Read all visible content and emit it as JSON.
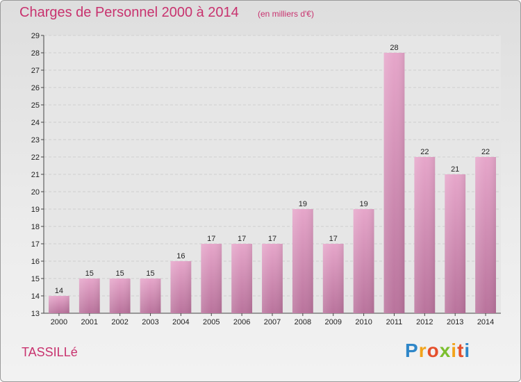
{
  "chart_data": {
    "type": "bar",
    "title": "Charges de Personnel 2000 à 2014",
    "subtitle": "(en milliers d'€)",
    "categories": [
      "2000",
      "2001",
      "2002",
      "2003",
      "2004",
      "2005",
      "2006",
      "2007",
      "2008",
      "2009",
      "2010",
      "2011",
      "2012",
      "2013",
      "2014"
    ],
    "values": [
      14,
      15,
      15,
      15,
      16,
      17,
      17,
      17,
      19,
      17,
      19,
      28,
      22,
      21,
      22
    ],
    "ylim": [
      13,
      29
    ],
    "yticks": [
      "13",
      "14",
      "15",
      "16",
      "17",
      "18",
      "19",
      "20",
      "21",
      "22",
      "23",
      "24",
      "25",
      "26",
      "27",
      "28",
      "29"
    ],
    "grid": true,
    "bar_color": "#d98fb8"
  },
  "commune": "TASSILLé",
  "logo": {
    "letters": [
      "P",
      "r",
      "o",
      "x",
      "i",
      "t",
      "i"
    ],
    "colors": [
      "#2e86c8",
      "#f2a31b",
      "#e54f2b",
      "#7bbf2e",
      "#f2a31b",
      "#e54f2b",
      "#2e86c8"
    ]
  }
}
